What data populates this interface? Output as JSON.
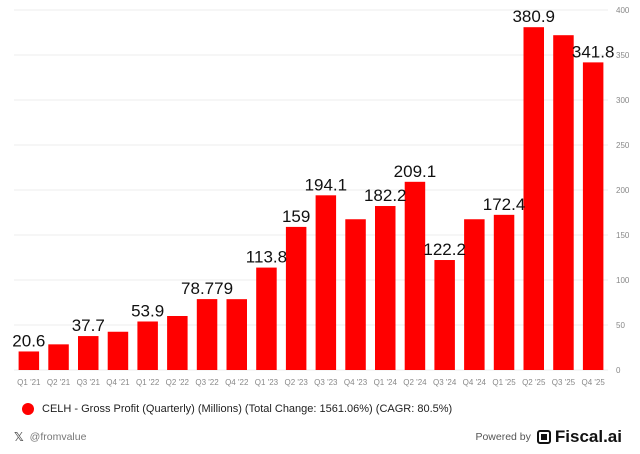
{
  "chart_data": {
    "type": "bar",
    "categories": [
      "Q1 '21",
      "Q2 '21",
      "Q3 '21",
      "Q4 '21",
      "Q1 '22",
      "Q2 '22",
      "Q3 '22",
      "Q4 '22",
      "Q1 '23",
      "Q2 '23",
      "Q3 '23",
      "Q4 '23",
      "Q1 '24",
      "Q2 '24",
      "Q3 '24",
      "Q4 '24",
      "Q1 '25",
      "Q2 '25",
      "Q3 '25",
      "Q4 '25"
    ],
    "values": [
      20.6,
      28.5,
      37.7,
      42.5,
      53.9,
      60.0,
      78.779,
      78.7,
      113.8,
      159,
      194.1,
      167.5,
      182.2,
      209.1,
      122.2,
      167.5,
      172.4,
      380.9,
      372.0,
      341.8
    ],
    "data_labels": [
      "20.6",
      "",
      "37.7",
      "",
      "53.9",
      "",
      "78.779",
      "",
      "113.8",
      "159",
      "194.1",
      "",
      "182.2",
      "209.1",
      "122.2",
      "",
      "172.4",
      "380.9",
      "",
      "341.8"
    ],
    "y_ticks": [
      0,
      50,
      100,
      150,
      200,
      250,
      300,
      350,
      400
    ],
    "ylim": [
      0,
      400
    ],
    "color": "#ff0000",
    "grid": true,
    "legend": "bottom-left"
  },
  "legend": {
    "label": "CELH - Gross Profit (Quarterly) (Millions) (Total Change: 1561.06%) (CAGR: 80.5%)",
    "color": "#ff0000"
  },
  "footer": {
    "handle": "@fromvalue",
    "powered_by": "Powered by",
    "brand": "Fiscal.ai",
    "x_icon": "x-logo-icon",
    "brand_icon": "fiscal-logo-icon"
  }
}
